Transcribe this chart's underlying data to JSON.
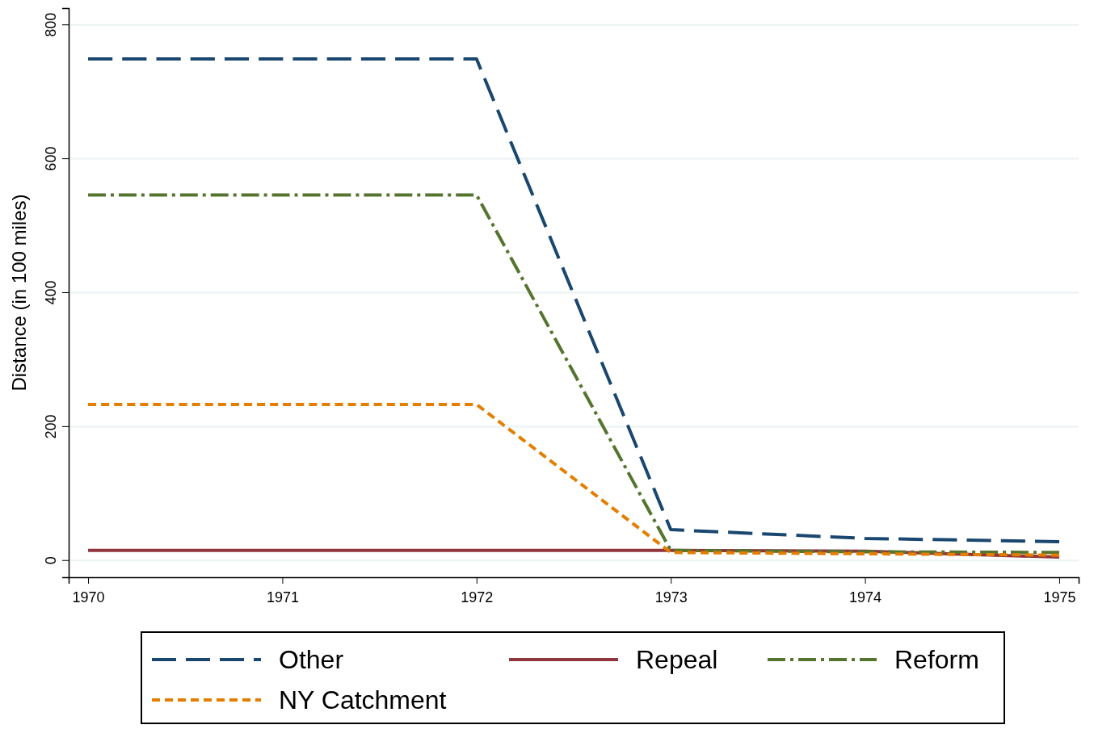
{
  "chart_data": {
    "type": "line",
    "ylabel": "Distance (in 100 miles)",
    "x": [
      1970,
      1971,
      1972,
      1973,
      1974,
      1975
    ],
    "xlim": [
      1969.9,
      1975.1
    ],
    "xticks": [
      1970,
      1971,
      1972,
      1973,
      1974,
      1975
    ],
    "ylim": [
      -25,
      825
    ],
    "yticks": [
      0,
      200,
      400,
      600,
      800
    ],
    "grid": "y",
    "legend": "bottom",
    "marker": "none",
    "series": [
      {
        "name": "Other",
        "color": "#1a476f",
        "line_style": "longdash",
        "values": [
          749,
          749,
          749,
          46,
          33,
          28
        ]
      },
      {
        "name": "Repeal",
        "color": "#90353b",
        "line_style": "solid",
        "values": [
          15,
          15,
          15,
          15,
          14,
          5
        ]
      },
      {
        "name": "Reform",
        "color": "#55752f",
        "line_style": "dashdot",
        "values": [
          546,
          546,
          546,
          15,
          13,
          12
        ]
      },
      {
        "name": "NY Catchment",
        "color": "#e37e00",
        "line_style": "dashed",
        "values": [
          233,
          233,
          233,
          12,
          10,
          8
        ]
      }
    ]
  }
}
